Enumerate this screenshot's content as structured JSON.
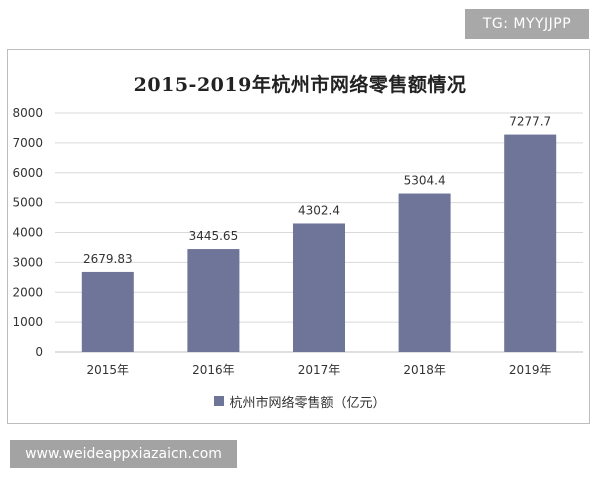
{
  "watermarks": {
    "top_right": "TG: MYYJJPP",
    "bottom_left": "www.weideappxiazaicn.com"
  },
  "colors": {
    "bar": "#6f7499",
    "grid": "#d9d9d9",
    "axis": "#bfbfbf"
  },
  "chart_data": {
    "type": "bar",
    "title": "2015-2019年杭州市网络零售额情况",
    "categories": [
      "2015年",
      "2016年",
      "2017年",
      "2018年",
      "2019年"
    ],
    "series": [
      {
        "name": "杭州市网络零售额（亿元）",
        "values": [
          2679.83,
          3445.65,
          4302.4,
          5304.4,
          7277.7
        ],
        "labels": [
          "2679.83",
          "3445.65",
          "4302.4",
          "5304.4",
          "7277.7"
        ]
      }
    ],
    "ylim": [
      0,
      8000
    ],
    "yticks": [
      0,
      1000,
      2000,
      3000,
      4000,
      5000,
      6000,
      7000,
      8000
    ],
    "grid": true,
    "legend": "bottom-center",
    "xlabel": "",
    "ylabel": ""
  }
}
